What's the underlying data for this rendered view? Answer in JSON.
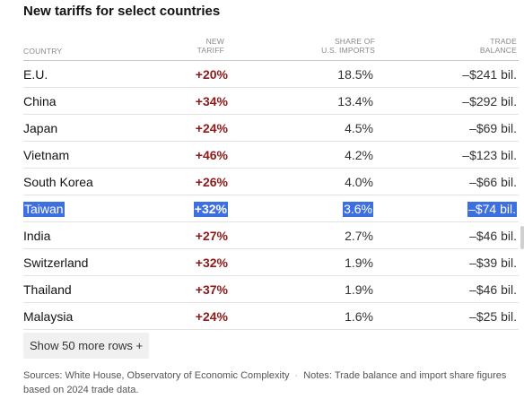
{
  "title": "New tariffs for select countries",
  "columns": {
    "country": "COUNTRY",
    "tariff_line1": "NEW",
    "tariff_line2": "TARIFF",
    "share_line1": "SHARE OF",
    "share_line2": "U.S. IMPORTS",
    "balance_line1": "TRADE",
    "balance_line2": "BALANCE"
  },
  "rows": [
    {
      "country": "E.U.",
      "tariff": "+20%",
      "share": "18.5%",
      "balance": "–$241 bil."
    },
    {
      "country": "China",
      "tariff": "+34%",
      "share": "13.4%",
      "balance": "–$292 bil."
    },
    {
      "country": "Japan",
      "tariff": "+24%",
      "share": "4.5%",
      "balance": "–$69 bil."
    },
    {
      "country": "Vietnam",
      "tariff": "+46%",
      "share": "4.2%",
      "balance": "–$123 bil."
    },
    {
      "country": "South Korea",
      "tariff": "+26%",
      "share": "4.0%",
      "balance": "–$66 bil."
    },
    {
      "country": "Taiwan",
      "tariff": "+32%",
      "share": "3.6%",
      "balance": "–$74 bil."
    },
    {
      "country": "India",
      "tariff": "+27%",
      "share": "2.7%",
      "balance": "–$46 bil."
    },
    {
      "country": "Switzerland",
      "tariff": "+32%",
      "share": "1.9%",
      "balance": "–$39 bil."
    },
    {
      "country": "Thailand",
      "tariff": "+37%",
      "share": "1.9%",
      "balance": "–$46 bil."
    },
    {
      "country": "Malaysia",
      "tariff": "+24%",
      "share": "1.6%",
      "balance": "–$25 bil."
    }
  ],
  "selected_row_index": 5,
  "more_button_label": "Show 50 more rows +",
  "footnote": {
    "sources": "Sources: White House, Observatory of Economic Complexity",
    "separator": "·",
    "notes": "Notes: Trade balance and import share figures based on 2024 trade data."
  },
  "colors": {
    "tariff_text": "#8b1a1a",
    "selection_highlight": "#3d6fe0"
  }
}
